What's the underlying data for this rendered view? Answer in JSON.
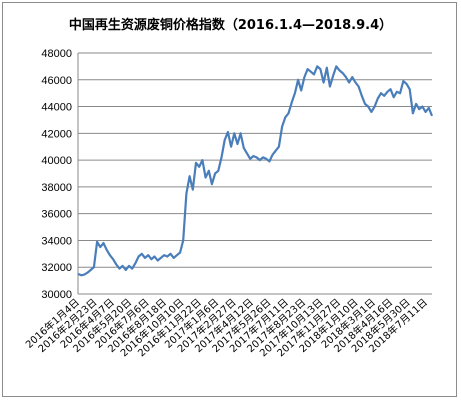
{
  "chart_data": {
    "type": "line",
    "title": "中国再生资源废铜价格指数（2016.1.4—2018.9.4）",
    "ylim": [
      30000,
      48000
    ],
    "y_ticks": [
      "30000",
      "32000",
      "34000",
      "36000",
      "38000",
      "40000",
      "42000",
      "44000",
      "46000",
      "48000"
    ],
    "x_tick_labels": [
      "2016年1月4日",
      "2016年2月23日",
      "2016年4月7日",
      "2016年5月20日",
      "2016年7月6日",
      "2016年8月18日",
      "2016年10月10日",
      "2016年11月22日",
      "2017年1月6日",
      "2017年2月27日",
      "2017年4月12日",
      "2017年5月26日",
      "2017年7月11日",
      "2017年8月23日",
      "2017年10月13日",
      "2017年11月27日",
      "2018年1月10日",
      "2018年3月1日",
      "2018年4月16日",
      "2018年5月30日",
      "2018年7月11日"
    ],
    "grid": true,
    "line_color": "#4a7ebb",
    "series": [
      {
        "values": [
          31500,
          31400,
          31450,
          31600,
          31800,
          32000,
          33900,
          33500,
          33800,
          33300,
          32900,
          32600,
          32200,
          31900,
          32100,
          31800,
          32100,
          31900,
          32300,
          32800,
          33000,
          32700,
          32900,
          32600,
          32800,
          32500,
          32700,
          32900,
          32800,
          33000,
          32700,
          32900,
          33100,
          34000,
          37500,
          38800,
          37800,
          39800,
          39500,
          40000,
          38700,
          39200,
          38200,
          39000,
          39200,
          40200,
          41500,
          42100,
          41000,
          42000,
          41200,
          42000,
          40900,
          40500,
          40100,
          40300,
          40200,
          40000,
          40200,
          40100,
          39900,
          40400,
          40700,
          41000,
          42500,
          43200,
          43500,
          44300,
          45000,
          46000,
          45200,
          46200,
          46800,
          46600,
          46400,
          47000,
          46800,
          45800,
          46900,
          45500,
          46300,
          47000,
          46700,
          46500,
          46200,
          45800,
          46200,
          45800,
          45500,
          44800,
          44200,
          44000,
          43600,
          44000,
          44600,
          45000,
          44800,
          45100,
          45300,
          44700,
          45100,
          45000,
          45900,
          45700,
          45300,
          43500,
          44200,
          43800,
          44000,
          43600,
          43900,
          43300
        ]
      }
    ]
  }
}
